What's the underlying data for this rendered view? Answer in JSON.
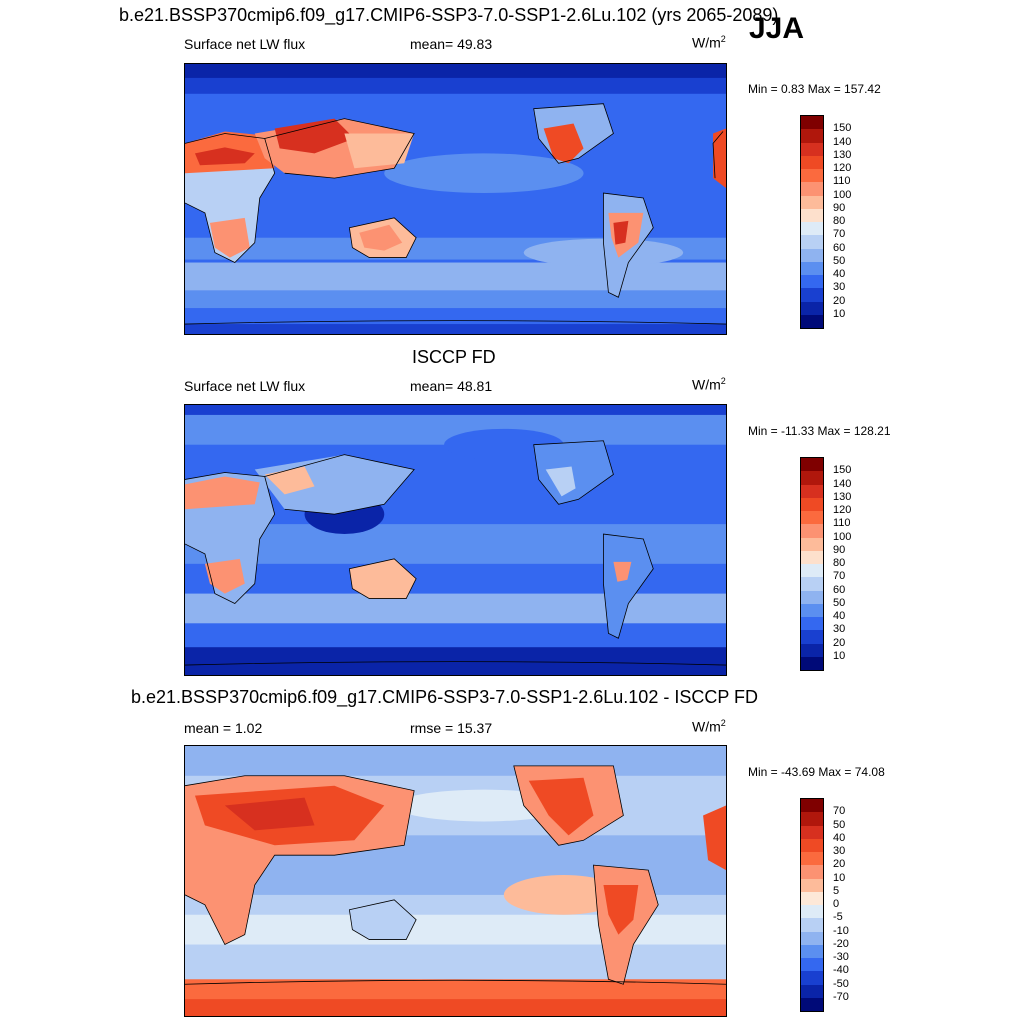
{
  "season": "JJA",
  "panels": [
    {
      "title": "b.e21.BSSP370cmip6.f09_g17.CMIP6-SSP3-7.0-SSP1-2.6Lu.102 (yrs 2065-2089)",
      "left_label": "Surface net LW flux",
      "center_label": "mean=  49.83",
      "units": "W/m",
      "units_sup": "2",
      "minmax": "Min =   0.83 Max = 157.42",
      "map_kind": "model"
    },
    {
      "title": "ISCCP FD",
      "left_label": "Surface net LW flux",
      "center_label": "mean=  48.81",
      "units": "W/m",
      "units_sup": "2",
      "minmax": "Min = -11.33 Max = 128.21",
      "map_kind": "obs"
    },
    {
      "title": "b.e21.BSSP370cmip6.f09_g17.CMIP6-SSP3-7.0-SSP1-2.6Lu.102 - ISCCP FD",
      "left_label": "mean =   1.02",
      "center_label": "rmse =  15.37",
      "units": "W/m",
      "units_sup": "2",
      "minmax": "Min = -43.69 Max =  74.08",
      "map_kind": "diff"
    }
  ],
  "colorbars": {
    "flux": {
      "labels": [
        "150",
        "140",
        "130",
        "120",
        "110",
        "100",
        "90",
        "80",
        "70",
        "60",
        "50",
        "40",
        "30",
        "20",
        "10"
      ],
      "colors": [
        "#7f0000",
        "#b0170c",
        "#d7301f",
        "#ef4a24",
        "#fb6a3e",
        "#fc9272",
        "#fdbb9a",
        "#fde0cc",
        "#deebf7",
        "#b8d0f4",
        "#8fb3f0",
        "#5b8ff0",
        "#3468f0",
        "#1940d0",
        "#0a24a8",
        "#000a78"
      ]
    },
    "diff": {
      "labels": [
        "70",
        "50",
        "40",
        "30",
        "20",
        "10",
        "5",
        "0",
        "-5",
        "-10",
        "-20",
        "-30",
        "-40",
        "-50",
        "-70"
      ],
      "colors": [
        "#7f0000",
        "#b0170c",
        "#d7301f",
        "#ef4a24",
        "#fb6a3e",
        "#fc9272",
        "#fdbb9a",
        "#fde8d8",
        "#deebf7",
        "#b8d0f4",
        "#8fb3f0",
        "#5b8ff0",
        "#3468f0",
        "#1940d0",
        "#0a24a8",
        "#000a78"
      ]
    }
  }
}
